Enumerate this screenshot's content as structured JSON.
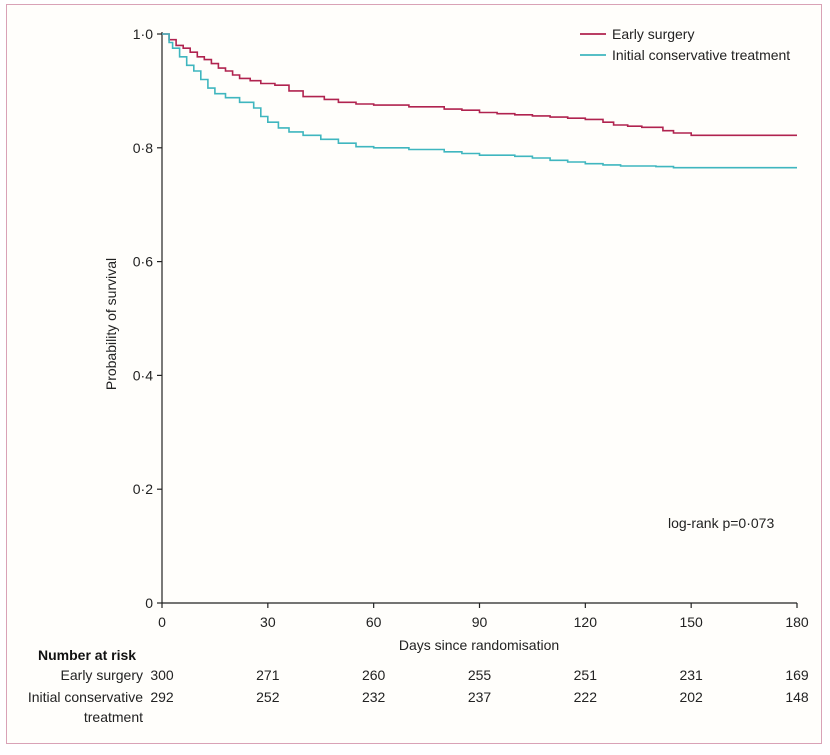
{
  "chart_data": {
    "type": "line",
    "title": "",
    "xlabel": "Days since randomisation",
    "ylabel": "Probability of survival",
    "xlim": [
      0,
      180
    ],
    "ylim": [
      0,
      1
    ],
    "xticks": [
      "0",
      "30",
      "60",
      "90",
      "120",
      "150",
      "180"
    ],
    "yticks": [
      "0",
      "0·2",
      "0·4",
      "0·6",
      "0·8",
      "1·0"
    ],
    "annotation": "log-rank p=0·073",
    "legend_position": "top-right",
    "series": [
      {
        "name": "Early surgery",
        "color": "#b0234f",
        "x": [
          0,
          2,
          4,
          6,
          8,
          10,
          12,
          14,
          16,
          18,
          20,
          22,
          25,
          28,
          32,
          36,
          40,
          46,
          50,
          55,
          60,
          70,
          80,
          85,
          90,
          95,
          100,
          105,
          110,
          115,
          120,
          125,
          128,
          132,
          136,
          142,
          145,
          150,
          160,
          170,
          180
        ],
        "y": [
          1.0,
          0.99,
          0.98,
          0.975,
          0.968,
          0.96,
          0.955,
          0.948,
          0.94,
          0.935,
          0.928,
          0.922,
          0.918,
          0.913,
          0.91,
          0.9,
          0.89,
          0.885,
          0.88,
          0.877,
          0.875,
          0.872,
          0.868,
          0.866,
          0.862,
          0.86,
          0.858,
          0.856,
          0.854,
          0.852,
          0.85,
          0.845,
          0.84,
          0.838,
          0.836,
          0.83,
          0.826,
          0.822,
          0.822,
          0.822,
          0.822
        ]
      },
      {
        "name": "Initial conservative treatment",
        "color": "#3fb6bf",
        "x": [
          0,
          2,
          3,
          5,
          7,
          9,
          11,
          13,
          15,
          18,
          22,
          26,
          28,
          30,
          33,
          36,
          40,
          45,
          50,
          55,
          60,
          70,
          80,
          85,
          90,
          100,
          105,
          110,
          115,
          120,
          125,
          130,
          140,
          145,
          150,
          160,
          170,
          180
        ],
        "y": [
          1.0,
          0.985,
          0.975,
          0.96,
          0.945,
          0.935,
          0.92,
          0.905,
          0.895,
          0.888,
          0.88,
          0.87,
          0.855,
          0.845,
          0.835,
          0.828,
          0.822,
          0.815,
          0.808,
          0.802,
          0.8,
          0.797,
          0.793,
          0.79,
          0.787,
          0.785,
          0.782,
          0.778,
          0.775,
          0.772,
          0.77,
          0.768,
          0.767,
          0.765,
          0.765,
          0.765,
          0.765,
          0.765
        ]
      }
    ],
    "risk_table": {
      "title": "Number at risk",
      "times": [
        0,
        30,
        60,
        90,
        120,
        150,
        180
      ],
      "rows": [
        {
          "label": "Early surgery",
          "values": [
            "300",
            "271",
            "260",
            "255",
            "251",
            "231",
            "169"
          ]
        },
        {
          "label": "Initial conservative",
          "label2": "treatment",
          "values": [
            "292",
            "252",
            "232",
            "237",
            "222",
            "202",
            "148"
          ]
        }
      ]
    }
  }
}
